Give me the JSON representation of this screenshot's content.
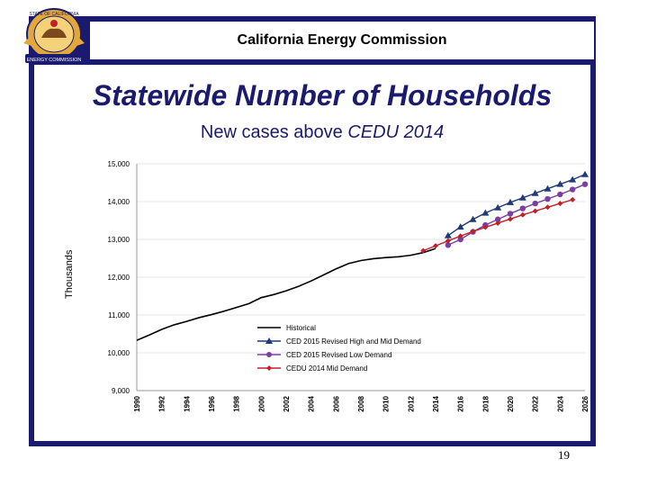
{
  "header": {
    "org_name": "California Energy Commission",
    "seal_top_text": "STATE OF CALIFORNIA",
    "seal_bottom_text": "ENERGY COMMISSION"
  },
  "slide": {
    "title": "Statewide Number of Households",
    "subtitle_prefix": "New cases above ",
    "subtitle_emph": "CEDU 2014",
    "page_number": "19"
  },
  "colors": {
    "navy": "#1a1a6e",
    "historical": "#000000",
    "high_mid": "#1f3a78",
    "low": "#7a3fa0",
    "cedu2014": "#c0202a"
  },
  "chart_data": {
    "type": "line",
    "title": "",
    "xlabel": "",
    "ylabel": "Thousands",
    "ylim": [
      9000,
      15000
    ],
    "yticks": [
      "9,000",
      "10,000",
      "11,000",
      "12,000",
      "13,000",
      "14,000",
      "15,000"
    ],
    "xticks": [
      "1990",
      "1992",
      "1994",
      "1996",
      "1998",
      "2000",
      "2002",
      "2004",
      "2006",
      "2008",
      "2010",
      "2012",
      "2014",
      "2016",
      "2018",
      "2020",
      "2022",
      "2024",
      "2026"
    ],
    "xlim": [
      1990,
      2026
    ],
    "series": [
      {
        "name": "Historical",
        "marker": "none",
        "x": [
          1990,
          1991,
          1992,
          1993,
          1994,
          1995,
          1996,
          1997,
          1998,
          1999,
          2000,
          2001,
          2002,
          2003,
          2004,
          2005,
          2006,
          2007,
          2008,
          2009,
          2010,
          2011,
          2012,
          2013,
          2014
        ],
        "values": [
          10330,
          10470,
          10620,
          10740,
          10830,
          10930,
          11010,
          11100,
          11200,
          11300,
          11460,
          11540,
          11640,
          11760,
          11900,
          12060,
          12220,
          12360,
          12440,
          12490,
          12520,
          12540,
          12580,
          12650,
          12760
        ]
      },
      {
        "name": "CED 2015 Revised  High and Mid Demand",
        "marker": "triangle",
        "x": [
          2015,
          2016,
          2017,
          2018,
          2019,
          2020,
          2021,
          2022,
          2023,
          2024,
          2025,
          2026
        ],
        "values": [
          13100,
          13330,
          13530,
          13700,
          13840,
          13980,
          14100,
          14220,
          14340,
          14460,
          14580,
          14720
        ]
      },
      {
        "name": "CED 2015 Revised  Low Demand",
        "marker": "circle",
        "x": [
          2015,
          2016,
          2017,
          2018,
          2019,
          2020,
          2021,
          2022,
          2023,
          2024,
          2025,
          2026
        ],
        "values": [
          12850,
          13000,
          13200,
          13380,
          13530,
          13680,
          13820,
          13950,
          14070,
          14190,
          14320,
          14460
        ]
      },
      {
        "name": "CEDU 2014  Mid Demand",
        "marker": "diamond",
        "x": [
          2013,
          2014,
          2015,
          2016,
          2017,
          2018,
          2019,
          2020,
          2021,
          2022,
          2023,
          2024,
          2025
        ],
        "values": [
          12700,
          12830,
          12960,
          13090,
          13210,
          13320,
          13430,
          13540,
          13650,
          13750,
          13850,
          13950,
          14050
        ]
      }
    ]
  }
}
